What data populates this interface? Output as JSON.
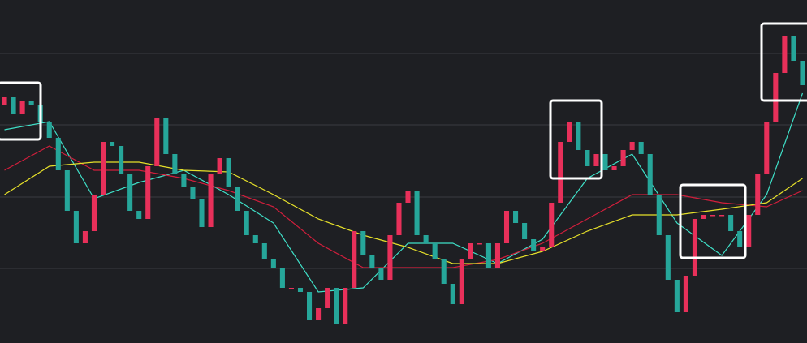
{
  "chart_data": {
    "type": "candlestick",
    "xlim": [
      -0.5,
      89.5
    ],
    "ylim": [
      0,
      423
    ],
    "yticks": [
      92,
      180,
      269,
      357
    ],
    "grid": true,
    "up_color": "#e8305a",
    "down_color": "#26a69a",
    "open": [
      293,
      303,
      283,
      298,
      293,
      273,
      253,
      213,
      163,
      123,
      138,
      183,
      248,
      243,
      208,
      163,
      153,
      218,
      278,
      233,
      208,
      193,
      178,
      143,
      208,
      228,
      193,
      163,
      133,
      123,
      103,
      93,
      68,
      68,
      63,
      28,
      43,
      68,
      23,
      68,
      138,
      108,
      93,
      78,
      133,
      173,
      188,
      133,
      123,
      103,
      73,
      48,
      103,
      123,
      123,
      93,
      123,
      163,
      148,
      128,
      113,
      118,
      173,
      248,
      273,
      238,
      218,
      233,
      213,
      218,
      238,
      248,
      233,
      183,
      133,
      78,
      38,
      83,
      153,
      158,
      158,
      158,
      138,
      118,
      158,
      208,
      273,
      333,
      378,
      348
    ],
    "close": [
      303,
      283,
      298,
      293,
      273,
      253,
      213,
      163,
      123,
      138,
      183,
      248,
      243,
      208,
      163,
      153,
      218,
      278,
      233,
      208,
      193,
      178,
      143,
      208,
      228,
      193,
      163,
      133,
      123,
      103,
      93,
      68,
      68,
      63,
      28,
      43,
      68,
      23,
      68,
      138,
      108,
      93,
      78,
      133,
      173,
      188,
      133,
      123,
      103,
      73,
      48,
      103,
      123,
      123,
      93,
      123,
      163,
      148,
      128,
      113,
      118,
      173,
      248,
      273,
      238,
      218,
      233,
      213,
      218,
      238,
      248,
      233,
      183,
      133,
      78,
      38,
      83,
      153,
      158,
      158,
      158,
      138,
      118,
      158,
      208,
      273,
      333,
      378,
      348,
      318
    ],
    "lines": [
      {
        "color": "#3fe0c8",
        "x": [
          0,
          5,
          10,
          15,
          20,
          25,
          30,
          35,
          40,
          45,
          50,
          55,
          60,
          65,
          70,
          75,
          80,
          85,
          89
        ],
        "values": [
          263,
          273,
          178,
          198,
          213,
          183,
          148,
          63,
          68,
          123,
          123,
          98,
          128,
          203,
          233,
          148,
          108,
          183,
          308
        ]
      },
      {
        "color": "#d21f3c",
        "x": [
          0,
          5,
          10,
          15,
          20,
          25,
          30,
          35,
          40,
          45,
          50,
          55,
          60,
          65,
          70,
          75,
          80,
          85,
          89
        ],
        "values": [
          213,
          243,
          213,
          213,
          203,
          188,
          168,
          123,
          93,
          93,
          93,
          103,
          123,
          153,
          183,
          183,
          173,
          168,
          188
        ]
      },
      {
        "color": "#e6e02a",
        "x": [
          0,
          5,
          10,
          15,
          20,
          25,
          30,
          35,
          40,
          45,
          50,
          55,
          60,
          65,
          70,
          75,
          80,
          85,
          89
        ],
        "values": [
          183,
          218,
          223,
          223,
          213,
          211,
          183,
          153,
          133,
          118,
          98,
          98,
          113,
          138,
          158,
          158,
          165,
          173,
          203
        ]
      }
    ]
  }
}
